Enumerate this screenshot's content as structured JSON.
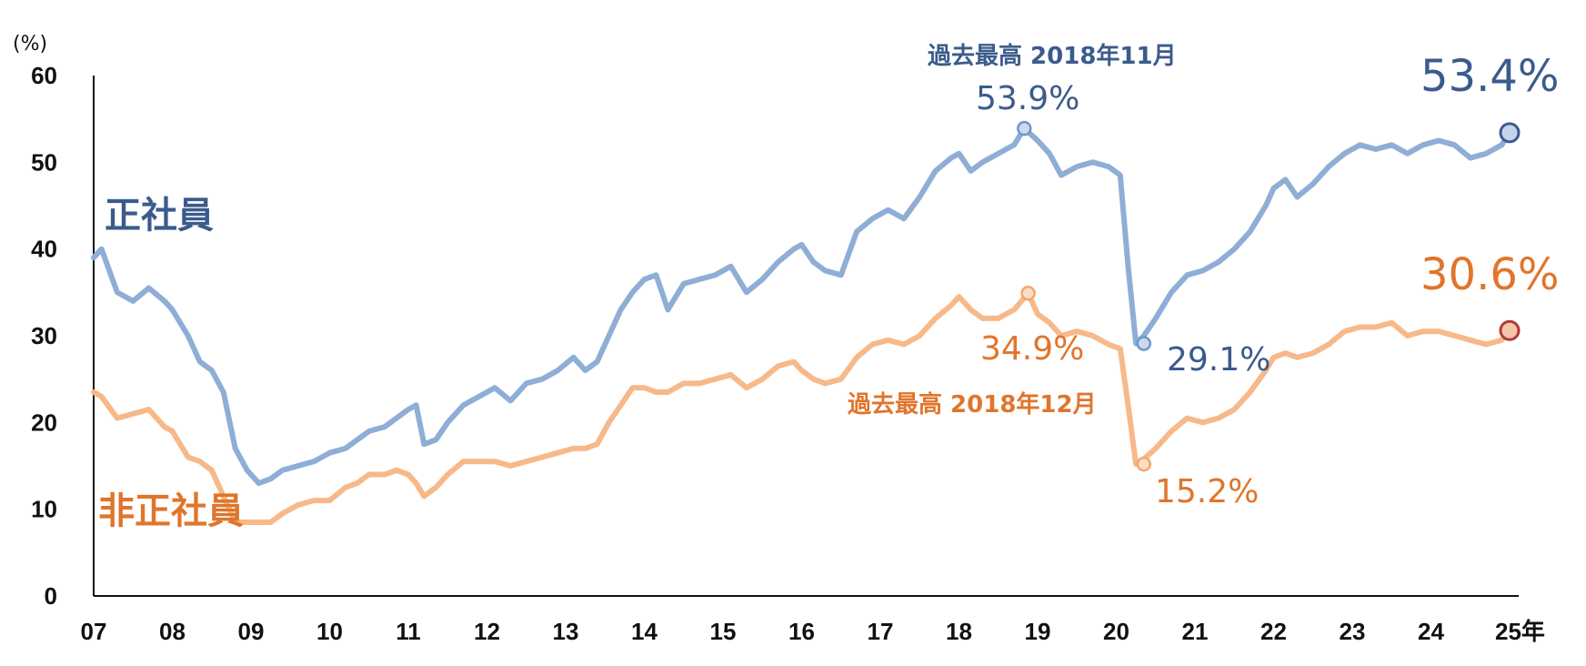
{
  "chart_data": {
    "type": "line",
    "title": "",
    "ylabel": "(%)",
    "x_suffix": "年",
    "ylim": [
      0,
      60
    ],
    "xlim": [
      2007.0,
      2025.0
    ],
    "yticks": [
      "0",
      "10",
      "20",
      "30",
      "40",
      "50",
      "60"
    ],
    "xticks": [
      "07",
      "08",
      "09",
      "10",
      "11",
      "12",
      "13",
      "14",
      "15",
      "16",
      "17",
      "18",
      "19",
      "20",
      "21",
      "22",
      "23",
      "24",
      "25"
    ],
    "colors": {
      "regular": "#8eaed6",
      "regular_text": "#3b5b8c",
      "nonregular": "#f7b98a",
      "nonregular_text": "#e0752c",
      "axis": "#111111"
    },
    "series": [
      {
        "name": "正社員",
        "x": [
          2007.0,
          2007.1,
          2007.3,
          2007.5,
          2007.7,
          2007.9,
          2008.0,
          2008.2,
          2008.35,
          2008.5,
          2008.65,
          2008.8,
          2008.95,
          2009.1,
          2009.25,
          2009.4,
          2009.6,
          2009.8,
          2010.0,
          2010.2,
          2010.35,
          2010.5,
          2010.7,
          2010.85,
          2011.0,
          2011.1,
          2011.2,
          2011.35,
          2011.5,
          2011.7,
          2011.9,
          2012.1,
          2012.3,
          2012.5,
          2012.7,
          2012.9,
          2013.1,
          2013.25,
          2013.4,
          2013.55,
          2013.7,
          2013.85,
          2014.0,
          2014.15,
          2014.3,
          2014.5,
          2014.7,
          2014.9,
          2015.1,
          2015.3,
          2015.5,
          2015.7,
          2015.9,
          2016.0,
          2016.15,
          2016.3,
          2016.5,
          2016.7,
          2016.9,
          2017.1,
          2017.3,
          2017.5,
          2017.7,
          2017.9,
          2018.0,
          2018.15,
          2018.3,
          2018.5,
          2018.7,
          2018.83,
          2019.0,
          2019.15,
          2019.3,
          2019.5,
          2019.7,
          2019.9,
          2020.05,
          2020.15,
          2020.25,
          2020.35,
          2020.5,
          2020.7,
          2020.9,
          2021.1,
          2021.3,
          2021.5,
          2021.7,
          2021.9,
          2022.0,
          2022.15,
          2022.3,
          2022.5,
          2022.7,
          2022.9,
          2023.1,
          2023.3,
          2023.5,
          2023.7,
          2023.9,
          2024.1,
          2024.3,
          2024.5,
          2024.7,
          2024.9,
          2025.0
        ],
        "values": [
          39,
          40,
          35,
          34,
          35.5,
          34,
          33,
          30,
          27,
          26,
          23.5,
          17,
          14.5,
          13,
          13.5,
          14.5,
          15,
          15.5,
          16.5,
          17,
          18,
          19,
          19.5,
          20.5,
          21.5,
          22,
          17.5,
          18,
          20,
          22,
          23,
          24,
          22.5,
          24.5,
          25,
          26,
          27.5,
          26,
          27,
          30,
          33,
          35,
          36.5,
          37,
          33,
          36,
          36.5,
          37,
          38,
          35,
          36.5,
          38.5,
          40,
          40.5,
          38.5,
          37.5,
          37,
          42,
          43.5,
          44.5,
          43.5,
          46,
          49,
          50.5,
          51,
          49,
          50,
          51,
          52,
          53.9,
          52.5,
          51,
          48.5,
          49.5,
          50,
          49.5,
          48.5,
          38,
          29.1,
          30,
          32,
          35,
          37,
          37.5,
          38.5,
          40,
          42,
          45,
          47,
          48,
          46,
          47.5,
          49.5,
          51,
          52,
          51.5,
          52,
          51,
          52,
          52.5,
          52,
          50.5,
          51,
          52,
          53.4
        ],
        "annotations": [
          {
            "label": "過去最高 2018年11月",
            "value_label": "53.9%",
            "x": 2018.83,
            "y": 53.9
          },
          {
            "label": "",
            "value_label": "29.1%",
            "x": 2020.35,
            "y": 29.1
          },
          {
            "label": "",
            "value_label": "53.4%",
            "x": 2025.0,
            "y": 53.4
          }
        ]
      },
      {
        "name": "非正社員",
        "x": [
          2007.0,
          2007.1,
          2007.3,
          2007.5,
          2007.7,
          2007.9,
          2008.0,
          2008.2,
          2008.35,
          2008.5,
          2008.65,
          2008.8,
          2008.95,
          2009.1,
          2009.25,
          2009.4,
          2009.6,
          2009.8,
          2010.0,
          2010.2,
          2010.35,
          2010.5,
          2010.7,
          2010.85,
          2011.0,
          2011.1,
          2011.2,
          2011.35,
          2011.5,
          2011.7,
          2011.9,
          2012.1,
          2012.3,
          2012.5,
          2012.7,
          2012.9,
          2013.1,
          2013.25,
          2013.4,
          2013.55,
          2013.7,
          2013.85,
          2014.0,
          2014.15,
          2014.3,
          2014.5,
          2014.7,
          2014.9,
          2015.1,
          2015.3,
          2015.5,
          2015.7,
          2015.9,
          2016.0,
          2016.15,
          2016.3,
          2016.5,
          2016.7,
          2016.9,
          2017.1,
          2017.3,
          2017.5,
          2017.7,
          2017.9,
          2018.0,
          2018.15,
          2018.3,
          2018.5,
          2018.7,
          2018.88,
          2019.0,
          2019.15,
          2019.3,
          2019.5,
          2019.7,
          2019.9,
          2020.05,
          2020.15,
          2020.25,
          2020.35,
          2020.5,
          2020.7,
          2020.9,
          2021.1,
          2021.3,
          2021.5,
          2021.7,
          2021.9,
          2022.0,
          2022.15,
          2022.3,
          2022.5,
          2022.7,
          2022.9,
          2023.1,
          2023.3,
          2023.5,
          2023.7,
          2023.9,
          2024.1,
          2024.3,
          2024.5,
          2024.7,
          2024.9,
          2025.0
        ],
        "values": [
          23.5,
          23,
          20.5,
          21,
          21.5,
          19.5,
          19,
          16,
          15.5,
          14.5,
          11.5,
          8.5,
          8.5,
          8.5,
          8.5,
          9.5,
          10.5,
          11,
          11,
          12.5,
          13,
          14,
          14,
          14.5,
          14,
          13,
          11.5,
          12.5,
          14,
          15.5,
          15.5,
          15.5,
          15,
          15.5,
          16,
          16.5,
          17,
          17,
          17.5,
          20,
          22,
          24,
          24,
          23.5,
          23.5,
          24.5,
          24.5,
          25,
          25.5,
          24,
          25,
          26.5,
          27,
          26,
          25,
          24.5,
          25,
          27.5,
          29,
          29.5,
          29,
          30,
          32,
          33.5,
          34.5,
          33,
          32,
          32,
          33,
          34.9,
          32.5,
          31.5,
          30,
          30.5,
          30,
          29,
          28.5,
          22,
          15.2,
          15.8,
          17,
          19,
          20.5,
          20,
          20.5,
          21.5,
          23.5,
          26,
          27.5,
          28,
          27.5,
          28,
          29,
          30.5,
          31,
          31,
          31.5,
          30,
          30.5,
          30.5,
          30,
          29.5,
          29,
          29.5,
          30.6
        ],
        "annotations": [
          {
            "label": "過去最高 2018年12月",
            "value_label": "34.9%",
            "x": 2018.88,
            "y": 34.9
          },
          {
            "label": "",
            "value_label": "15.2%",
            "x": 2020.35,
            "y": 15.2
          },
          {
            "label": "",
            "value_label": "30.6%",
            "x": 2025.0,
            "y": 30.6
          }
        ]
      }
    ]
  }
}
